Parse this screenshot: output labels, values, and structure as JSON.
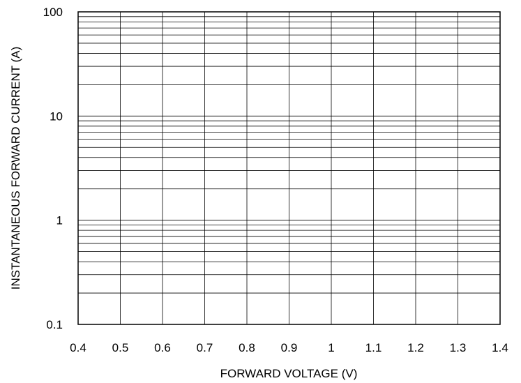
{
  "chart_data": {
    "type": "scatter",
    "title": "",
    "xlabel": "FORWARD VOLTAGE (V)",
    "ylabel": "INSTANTANEOUS FORWARD CURRENT (A)",
    "xlim": [
      0.4,
      1.4
    ],
    "ylim": [
      0.1,
      100
    ],
    "yscale": "log",
    "x_ticks": [
      "0.4",
      "0.5",
      "0.6",
      "0.7",
      "0.8",
      "0.9",
      "1",
      "1.1",
      "1.2",
      "1.3",
      "1.4"
    ],
    "y_ticks": [
      "0.1",
      "1",
      "10",
      "100"
    ],
    "grid": true,
    "series": []
  }
}
